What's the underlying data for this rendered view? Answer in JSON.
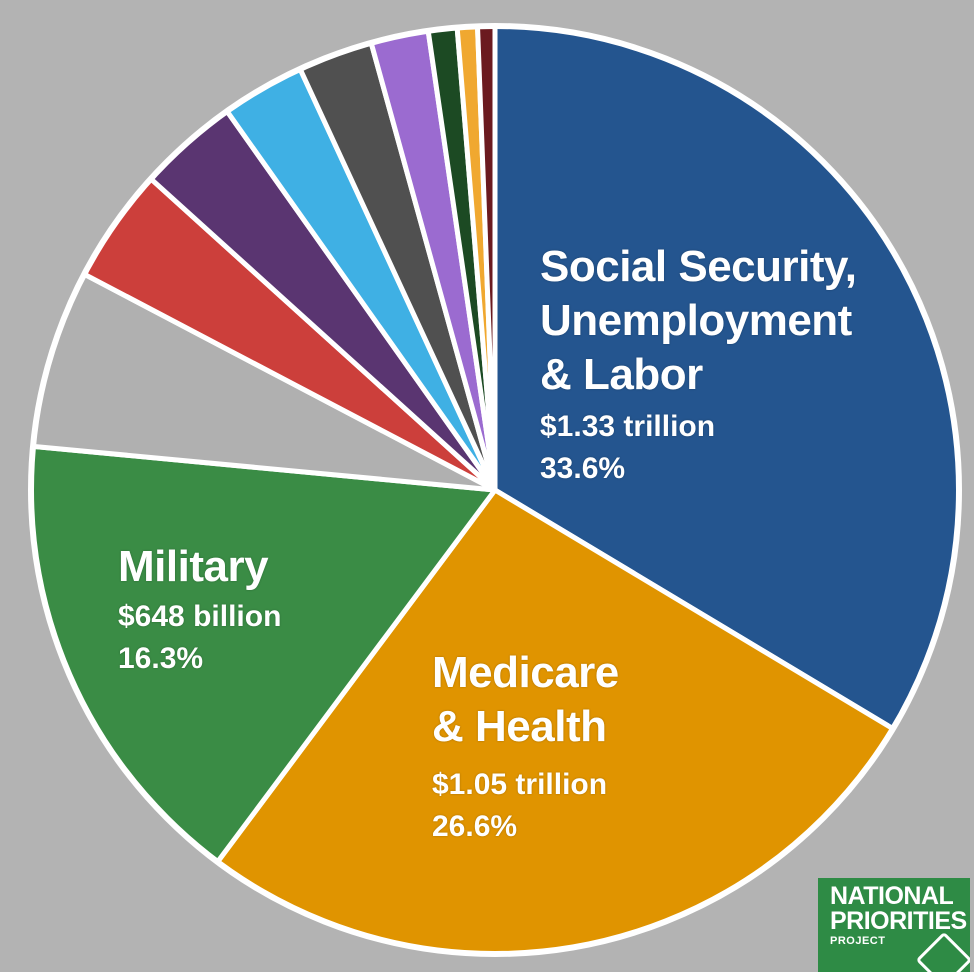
{
  "chart_data": {
    "type": "pie",
    "title": "",
    "legend": "none",
    "slices": [
      {
        "label_lines": [
          "Social Security,",
          "Unemployment",
          "& Labor"
        ],
        "value_text": "$1.33 trillion",
        "percent_text": "33.6%",
        "percent": 33.6,
        "color": "#24558f"
      },
      {
        "label_lines": [
          "Medicare",
          "& Health"
        ],
        "value_text": "$1.05 trillion",
        "percent_text": "26.6%",
        "percent": 26.6,
        "color": "#e09400"
      },
      {
        "label_lines": [
          "Military"
        ],
        "value_text": "$648 billion",
        "percent_text": "16.3%",
        "percent": 16.3,
        "color": "#3a8c45"
      },
      {
        "label_lines": [],
        "percent": 6.2,
        "color": "#b0b0b0"
      },
      {
        "label_lines": [],
        "percent": 4.0,
        "color": "#cc3f3b"
      },
      {
        "label_lines": [],
        "percent": 3.5,
        "color": "#5a3571"
      },
      {
        "label_lines": [],
        "percent": 2.9,
        "color": "#3fb0e4"
      },
      {
        "label_lines": [],
        "percent": 2.6,
        "color": "#505050"
      },
      {
        "label_lines": [],
        "percent": 2.0,
        "color": "#9b6bd0"
      },
      {
        "label_lines": [],
        "percent": 1.0,
        "color": "#1c4a23"
      },
      {
        "label_lines": [],
        "percent": 0.7,
        "color": "#f0a830"
      },
      {
        "label_lines": [],
        "percent": 0.6,
        "color": "#6b1a1f"
      }
    ]
  },
  "logo": {
    "line1": "NATIONAL",
    "line2": "PRIORITIES",
    "line3": "PROJECT",
    "color": "#2e8b45"
  }
}
